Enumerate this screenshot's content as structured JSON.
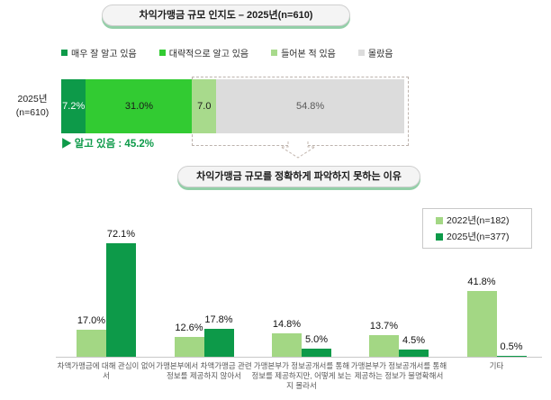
{
  "chart_data": [
    {
      "type": "bar",
      "orientation": "horizontal-stacked",
      "title": "차익가맹금 규모 인지도 – 2025년(n=610)",
      "categories": [
        "2025년 (n=610)"
      ],
      "category_label_lines": [
        "2025년",
        "(n=610)"
      ],
      "series": [
        {
          "name": "매우 잘 알고 있음",
          "values": [
            7.2
          ],
          "label": "7.2%",
          "color": "#0d9a49",
          "label_color": "#ffffff",
          "hatched": false
        },
        {
          "name": "대략적으로 알고 있음",
          "values": [
            31.0
          ],
          "label": "31.0%",
          "color": "#32cb32",
          "label_color": "#1a1a1a",
          "hatched": false
        },
        {
          "name": "들어본 적 있음",
          "values": [
            7.0
          ],
          "label": "7.0",
          "color": "#a8da8c",
          "label_color": "#1a1a1a",
          "hatched": false
        },
        {
          "name": "몰랐음",
          "values": [
            54.8
          ],
          "label": "54.8%",
          "color": "#dcdcdc",
          "label_color": "#595959",
          "hatched": true
        }
      ],
      "xlim": [
        0,
        100
      ],
      "legend_position": "top",
      "annotation": "▶ 알고 있음 : 45.2%"
    },
    {
      "type": "bar",
      "orientation": "vertical-grouped",
      "title": "차익가맹금 규모를 정확하게 파악하지 못하는 이유",
      "categories": [
        "차액가맹금에 대해 관심이 없어서",
        "가맹본부에서 차액가맹금 관련 정보를 제공하지 않아서",
        "가맹본부가 정보공개서를 통해 정보를 제공하지만, 어떻게 보는지 몰라서",
        "가맹본부가 정보공개서를 통해 제공하는 정보가 불명확해서",
        "기타"
      ],
      "series": [
        {
          "name": "2022년(n=182)",
          "color": "#a3d784",
          "values": [
            17.0,
            12.6,
            14.8,
            13.7,
            41.8
          ]
        },
        {
          "name": "2025년(n=377)",
          "color": "#0d9a49",
          "values": [
            72.1,
            17.8,
            5.0,
            4.5,
            0.5
          ]
        }
      ],
      "value_suffix": "%",
      "ylim": [
        0,
        80
      ],
      "grid": false,
      "legend_position": "top-right"
    }
  ]
}
